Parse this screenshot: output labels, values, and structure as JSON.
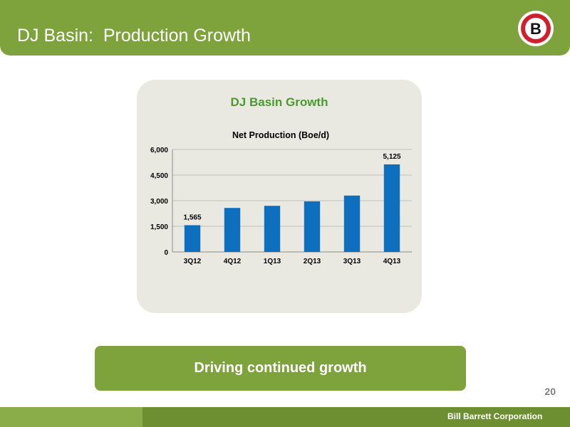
{
  "header": {
    "title": "DJ Basin:  Production Growth"
  },
  "logo": {
    "letter": "B",
    "icon": "company-logo-icon"
  },
  "chart_heading": "DJ Basin Growth",
  "chart_data": {
    "type": "bar",
    "title": "Net Production (Boe/d)",
    "xlabel": "",
    "ylabel": "",
    "categories": [
      "3Q12",
      "4Q12",
      "1Q13",
      "2Q13",
      "3Q13",
      "4Q13"
    ],
    "values": [
      1565,
      2575,
      2700,
      2960,
      3300,
      5125
    ],
    "data_labels": [
      "1,565",
      "",
      "",
      "",
      "",
      "5,125"
    ],
    "ylim": [
      0,
      6000
    ],
    "yticks": [
      0,
      1500,
      3000,
      4500,
      6000
    ],
    "ytick_labels": [
      "0",
      "1,500",
      "3,000",
      "4,500",
      "6,000"
    ],
    "grid": true,
    "legend": "none",
    "bar_color": "#0f6fbf"
  },
  "banner": {
    "text": "Driving continued growth"
  },
  "page_number": "20",
  "footer": {
    "company": "Bill Barrett Corporation"
  },
  "colors": {
    "brand_green": "#7ea33c",
    "footer_dark": "#6d8f32",
    "heading_green": "#4a9a2e",
    "logo_red": "#d0202e"
  }
}
